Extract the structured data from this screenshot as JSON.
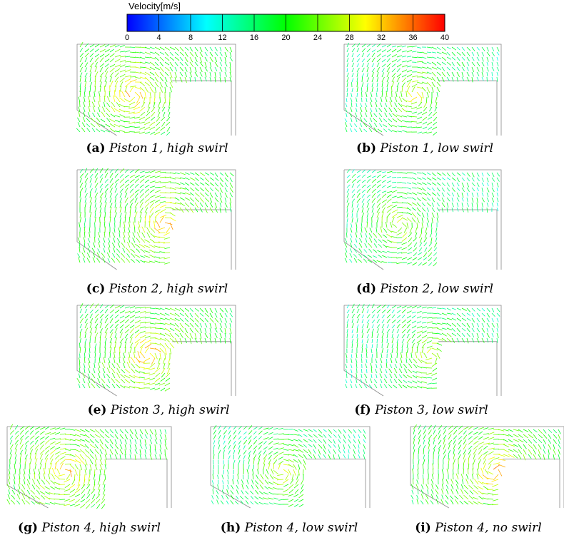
{
  "colorbar": {
    "label": "Velocity[m/s]",
    "ticks": [
      0,
      4,
      8,
      12,
      16,
      20,
      24,
      28,
      32,
      36,
      40
    ]
  },
  "panels": [
    {
      "label": "(a)",
      "caption": "Piston 1, high swirl"
    },
    {
      "label": "(b)",
      "caption": "Piston 1, low swirl"
    },
    {
      "label": "(c)",
      "caption": "Piston 2, high swirl"
    },
    {
      "label": "(d)",
      "caption": "Piston 2, low swirl"
    },
    {
      "label": "(e)",
      "caption": "Piston 3, high swirl"
    },
    {
      "label": "(f)",
      "caption": "Piston 3, low swirl"
    },
    {
      "label": "(g)",
      "caption": "Piston 4, high swirl"
    },
    {
      "label": "(h)",
      "caption": "Piston 4, low swirl"
    },
    {
      "label": "(i)",
      "caption": "Piston 4, no swirl"
    }
  ]
}
